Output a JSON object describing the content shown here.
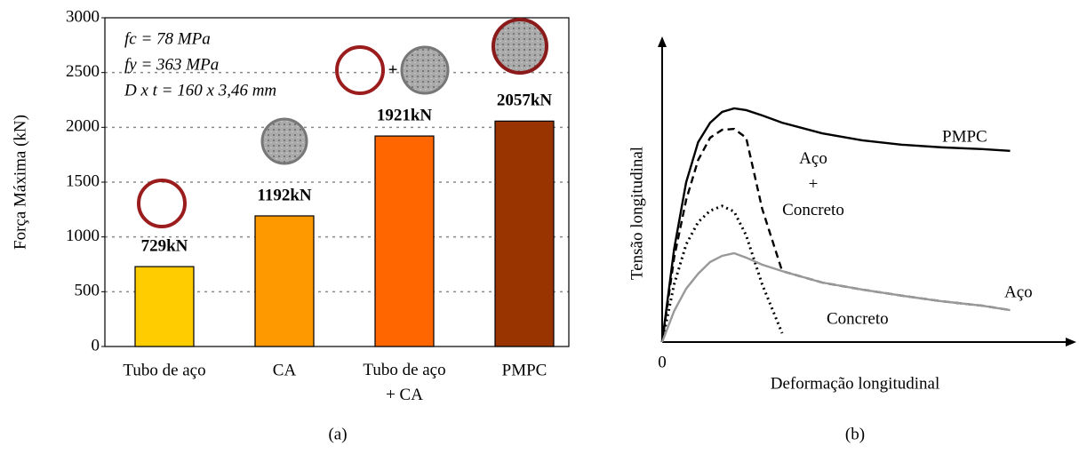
{
  "chart_data": [
    {
      "type": "bar",
      "ylabel": "Força Máxima (kN)",
      "panel_label": "(a)",
      "categories": [
        "Tubo de aço",
        "CA",
        "Tubo de aço\n+ CA",
        "PMPC"
      ],
      "values": [
        729,
        1192,
        1921,
        2057
      ],
      "value_labels": [
        "729kN",
        "1192kN",
        "1921kN",
        "2057kN"
      ],
      "colors": [
        "#ffcc00",
        "#ff9900",
        "#ff6600",
        "#993300"
      ],
      "ylim": [
        0,
        3000
      ],
      "yticks": [
        0,
        500,
        1000,
        1500,
        2000,
        2500,
        3000
      ],
      "grid": true,
      "annotations": [
        "fc = 78 MPa",
        "fy = 363 MPa",
        "D x t = 160 x 3,46 mm"
      ]
    },
    {
      "type": "line",
      "xlabel": "Deformação longitudinal",
      "ylabel": "Tensão longitudinal",
      "panel_label": "(b)",
      "x": [
        0,
        3,
        6,
        9,
        12,
        15,
        18,
        21,
        25,
        30,
        40,
        50,
        60,
        70,
        80,
        87
      ],
      "xlim": [
        0,
        100
      ],
      "ylim": [
        0,
        100
      ],
      "xticks": [
        0
      ],
      "series": [
        {
          "name": "PMPC",
          "color": "#000000",
          "dash": "solid",
          "values": [
            0,
            31.8,
            54.5,
            68.2,
            74.8,
            78.5,
            79.7,
            79.1,
            77.3,
            74.8,
            71.2,
            68.8,
            67.3,
            66.4,
            65.8,
            65.2
          ]
        },
        {
          "name": "Aço + Concreto",
          "color": "#000000",
          "dash": "dashed",
          "values": [
            0,
            28.8,
            48.5,
            62.1,
            69.7,
            72.4,
            72.7,
            69.7,
            45.5,
            24.2,
            20.3,
            17.9,
            15.8,
            13.9,
            12.4,
            10.9
          ]
        },
        {
          "name": "Concreto",
          "color": "#000000",
          "dash": "dotted",
          "values": [
            0,
            19.7,
            33.3,
            40.9,
            44.8,
            46.4,
            44.5,
            36.4,
            19.7,
            3.0,
            null,
            null,
            null,
            null,
            null,
            null
          ]
        },
        {
          "name": "Aço",
          "color": "#999999",
          "dash": "solid",
          "values": [
            0,
            10.6,
            18.2,
            23.3,
            27.3,
            29.4,
            30.3,
            28.8,
            26.4,
            24.2,
            20.3,
            17.9,
            15.8,
            13.9,
            12.4,
            10.9
          ]
        }
      ]
    }
  ]
}
